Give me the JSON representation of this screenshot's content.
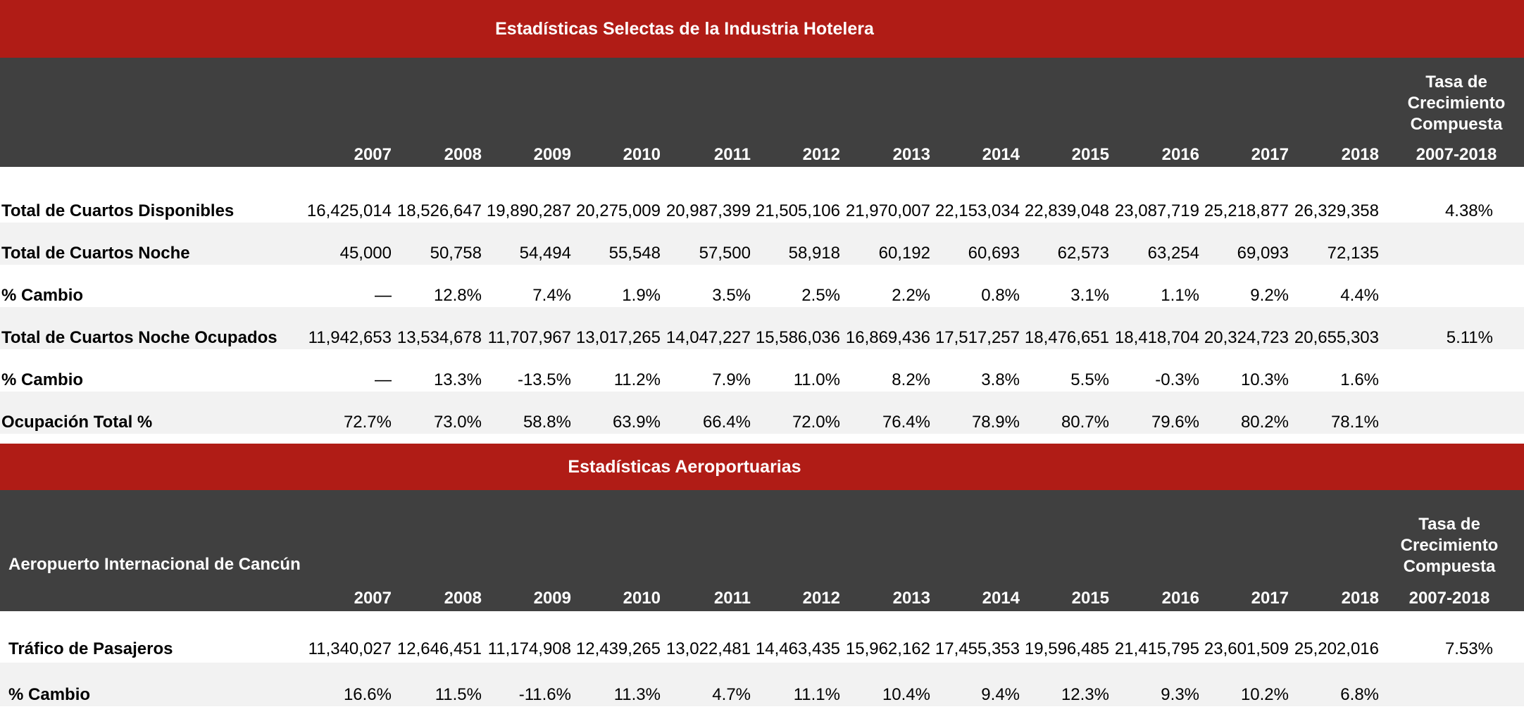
{
  "hotel": {
    "title": "Estadísticas Selectas de la Industria Hotelera",
    "header_label": "",
    "years": [
      "2007",
      "2008",
      "2009",
      "2010",
      "2011",
      "2012",
      "2013",
      "2014",
      "2015",
      "2016",
      "2017",
      "2018"
    ],
    "cagr_title_lines": [
      "Tasa de",
      "Crecimiento",
      "Compuesta"
    ],
    "cagr_period": "2007-2018",
    "rows": [
      {
        "label": "Total de Cuartos Disponibles",
        "values": [
          "16,425,014",
          "18,526,647",
          "19,890,287",
          "20,275,009",
          "20,987,399",
          "21,505,106",
          "21,970,007",
          "22,153,034",
          "22,839,048",
          "23,087,719",
          "25,218,877",
          "26,329,358"
        ],
        "cagr": "4.38%"
      },
      {
        "label": "Total de Cuartos Noche",
        "values": [
          "45,000",
          "50,758",
          "54,494",
          "55,548",
          "57,500",
          "58,918",
          "60,192",
          "60,693",
          "62,573",
          "63,254",
          "69,093",
          "72,135"
        ],
        "cagr": ""
      },
      {
        "label": "% Cambio",
        "values": [
          "—",
          "12.8%",
          "7.4%",
          "1.9%",
          "3.5%",
          "2.5%",
          "2.2%",
          "0.8%",
          "3.1%",
          "1.1%",
          "9.2%",
          "4.4%"
        ],
        "cagr": ""
      },
      {
        "label": "Total de Cuartos Noche Ocupados",
        "values": [
          "11,942,653",
          "13,534,678",
          "11,707,967",
          "13,017,265",
          "14,047,227",
          "15,586,036",
          "16,869,436",
          "17,517,257",
          "18,476,651",
          "18,418,704",
          "20,324,723",
          "20,655,303"
        ],
        "cagr": "5.11%"
      },
      {
        "label": "% Cambio",
        "values": [
          "—",
          "13.3%",
          "-13.5%",
          "11.2%",
          "7.9%",
          "11.0%",
          "8.2%",
          "3.8%",
          "5.5%",
          "-0.3%",
          "10.3%",
          "1.6%"
        ],
        "cagr": ""
      },
      {
        "label": "Ocupación Total %",
        "values": [
          "72.7%",
          "73.0%",
          "58.8%",
          "63.9%",
          "66.4%",
          "72.0%",
          "76.4%",
          "78.9%",
          "80.7%",
          "79.6%",
          "80.2%",
          "78.1%"
        ],
        "cagr": ""
      }
    ]
  },
  "airport": {
    "title": "Estadísticas Aeroportuarias",
    "header_label": "Aeropuerto Internacional de Cancún",
    "years": [
      "2007",
      "2008",
      "2009",
      "2010",
      "2011",
      "2012",
      "2013",
      "2014",
      "2015",
      "2016",
      "2017",
      "2018"
    ],
    "cagr_title_lines": [
      "Tasa de",
      "Crecimiento",
      "Compuesta"
    ],
    "cagr_period": "2007-2018",
    "rows": [
      {
        "label": "Tráfico de Pasajeros",
        "values": [
          "11,340,027",
          "12,646,451",
          "11,174,908",
          "12,439,265",
          "13,022,481",
          "14,463,435",
          "15,962,162",
          "17,455,353",
          "19,596,485",
          "21,415,795",
          "23,601,509",
          "25,202,016"
        ],
        "cagr": "7.53%"
      },
      {
        "label": "% Cambio",
        "values": [
          "16.6%",
          "11.5%",
          "-11.6%",
          "11.3%",
          "4.7%",
          "11.1%",
          "10.4%",
          "9.4%",
          "12.3%",
          "9.3%",
          "10.2%",
          "6.8%"
        ],
        "cagr": ""
      }
    ]
  },
  "colors": {
    "banner": "#b01c16",
    "header": "#404040",
    "shade": "#f2f2f2"
  }
}
